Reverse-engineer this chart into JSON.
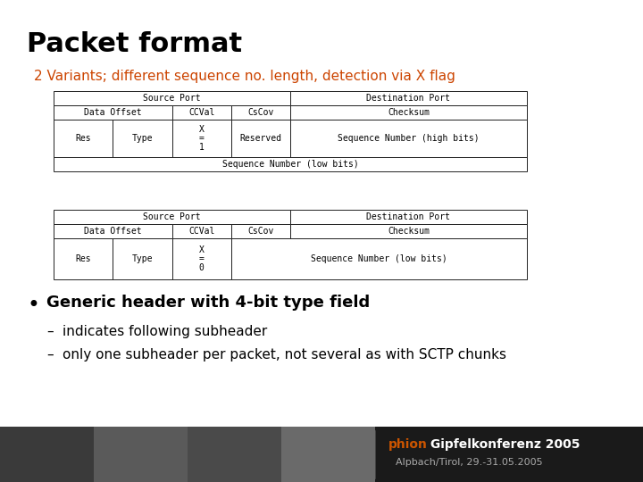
{
  "title": "Packet format",
  "subtitle": "2 Variants; different sequence no. length, detection via X flag",
  "subtitle_color": "#cc4400",
  "bg_color": "#ffffff",
  "table1_rows": [
    [
      {
        "text": "Source Port",
        "cs": 4
      },
      {
        "text": "Destination Port",
        "cs": 4
      }
    ],
    [
      {
        "text": "Data Offset",
        "cs": 2
      },
      {
        "text": "CCVal",
        "cs": 1
      },
      {
        "text": "CsCov",
        "cs": 1
      },
      {
        "text": "Checksum",
        "cs": 4
      }
    ],
    [
      {
        "text": "Res",
        "cs": 1
      },
      {
        "text": "Type",
        "cs": 1
      },
      {
        "text": "X\n=\n1",
        "cs": 1
      },
      {
        "text": "Reserved",
        "cs": 1
      },
      {
        "text": "Sequence Number (high bits)",
        "cs": 4
      }
    ],
    [
      {
        "text": "Sequence Number (low bits)",
        "cs": 8
      }
    ]
  ],
  "table2_rows": [
    [
      {
        "text": "Source Port",
        "cs": 4
      },
      {
        "text": "Destination Port",
        "cs": 4
      }
    ],
    [
      {
        "text": "Data Offset",
        "cs": 2
      },
      {
        "text": "CCVal",
        "cs": 1
      },
      {
        "text": "CsCov",
        "cs": 1
      },
      {
        "text": "Checksum",
        "cs": 4
      }
    ],
    [
      {
        "text": "Res",
        "cs": 1
      },
      {
        "text": "Type",
        "cs": 1
      },
      {
        "text": "X\n=\n0",
        "cs": 1
      },
      {
        "text": "Sequence Number (low bits)",
        "cs": 5
      }
    ]
  ],
  "bullet": "Generic header with 4-bit type field",
  "sub_bullets": [
    "indicates following subheader",
    "only one subheader per packet, not several as with SCTP chunks"
  ],
  "title_fontsize": 22,
  "subtitle_fontsize": 11,
  "table_fontsize": 7,
  "bullet_fontsize": 13,
  "sub_bullet_fontsize": 11,
  "footer_bg": "#1a1a1a",
  "footer_photo_colors": [
    "#3a3a3a",
    "#5a5a5a",
    "#4a4a4a",
    "#6a6a6a"
  ],
  "footer_text1": "phion Gipfelkonferenz 2005",
  "footer_text2": "Alpbach/Tirol, 29.-31.05.2005",
  "footer_orange": "#cc5500",
  "footer_white": "#ffffff",
  "footer_gray": "#aaaaaa"
}
